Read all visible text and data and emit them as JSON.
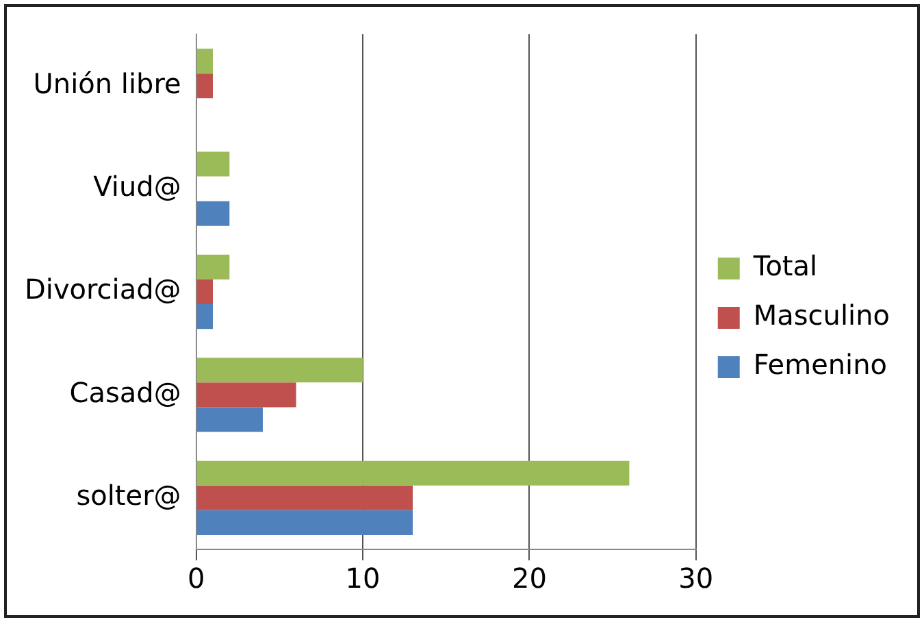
{
  "chart_data": {
    "type": "bar",
    "orientation": "horizontal",
    "categories": [
      "Unión libre",
      "Viud@",
      "Divorciad@",
      "Casad@",
      "solter@"
    ],
    "series": [
      {
        "name": "Total",
        "color": "#9bbb59",
        "values": [
          1,
          2,
          2,
          10,
          26
        ]
      },
      {
        "name": "Masculino",
        "color": "#c0504d",
        "values": [
          1,
          0,
          1,
          6,
          13
        ]
      },
      {
        "name": "Femenino",
        "color": "#4f81bd",
        "values": [
          0,
          2,
          1,
          4,
          13
        ]
      }
    ],
    "xlim": [
      0,
      30
    ],
    "xticks": [
      0,
      10,
      20,
      30
    ],
    "grid": "x",
    "legend": "right"
  }
}
